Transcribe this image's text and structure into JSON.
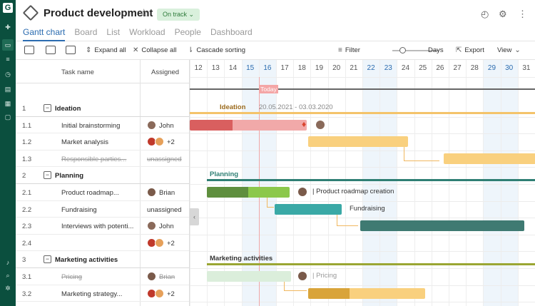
{
  "header": {
    "title": "Product development",
    "status": "On track",
    "tabs": [
      "Gantt chart",
      "Board",
      "List",
      "Workload",
      "People",
      "Dashboard"
    ]
  },
  "toolbar": {
    "expand_all": "Expand all",
    "collapse_all": "Collapse all",
    "cascade_sorting": "Cascade sorting",
    "filter": "Filter",
    "zoom_unit": "Days",
    "export": "Export",
    "view": "View"
  },
  "grid": {
    "col_task": "Task name",
    "col_assigned": "Assigned",
    "rows": [
      {
        "num": "1",
        "name": "Ideation",
        "assigned": ""
      },
      {
        "num": "1.1",
        "name": "Initial brainstorming",
        "assigned": "John"
      },
      {
        "num": "1.2",
        "name": "Market analysis",
        "assigned": "+2"
      },
      {
        "num": "1.3",
        "name": "Responsible parties...",
        "assigned": "unassigned"
      },
      {
        "num": "2",
        "name": "Planning",
        "assigned": ""
      },
      {
        "num": "2.1",
        "name": "Product roadmap...",
        "assigned": "Brian"
      },
      {
        "num": "2.2",
        "name": "Fundraising",
        "assigned": "unassigned"
      },
      {
        "num": "2.3",
        "name": "Interviews with potenti...",
        "assigned": "John"
      },
      {
        "num": "2.4",
        "name": "",
        "assigned": "+2"
      },
      {
        "num": "3",
        "name": "Marketing activities",
        "assigned": ""
      },
      {
        "num": "3.1",
        "name": "Pricing",
        "assigned": "Brian"
      },
      {
        "num": "3.2",
        "name": "Marketing strategy...",
        "assigned": "+2"
      }
    ]
  },
  "timeline": {
    "days": [
      "12",
      "13",
      "14",
      "15",
      "16",
      "17",
      "18",
      "19",
      "20",
      "21",
      "22",
      "23",
      "24",
      "25",
      "26",
      "27",
      "28",
      "29",
      "30",
      "31"
    ],
    "today_label": "Today",
    "ideation_label": "Ideation",
    "ideation_dates": "20.05.2021 - 03.03.2020",
    "planning_label": "Planning",
    "roadmap_label": "Product roadmap creation",
    "fundraising_label": "Fundraising",
    "marketing_label": "Marketing activities",
    "pricing_label": "Pricing"
  },
  "colors": {
    "rail": "#0b4f3e",
    "accent": "#2b6cb0",
    "ideation": "#f4c36a",
    "planning": "#2f7f74",
    "marketing": "#9aa633"
  }
}
